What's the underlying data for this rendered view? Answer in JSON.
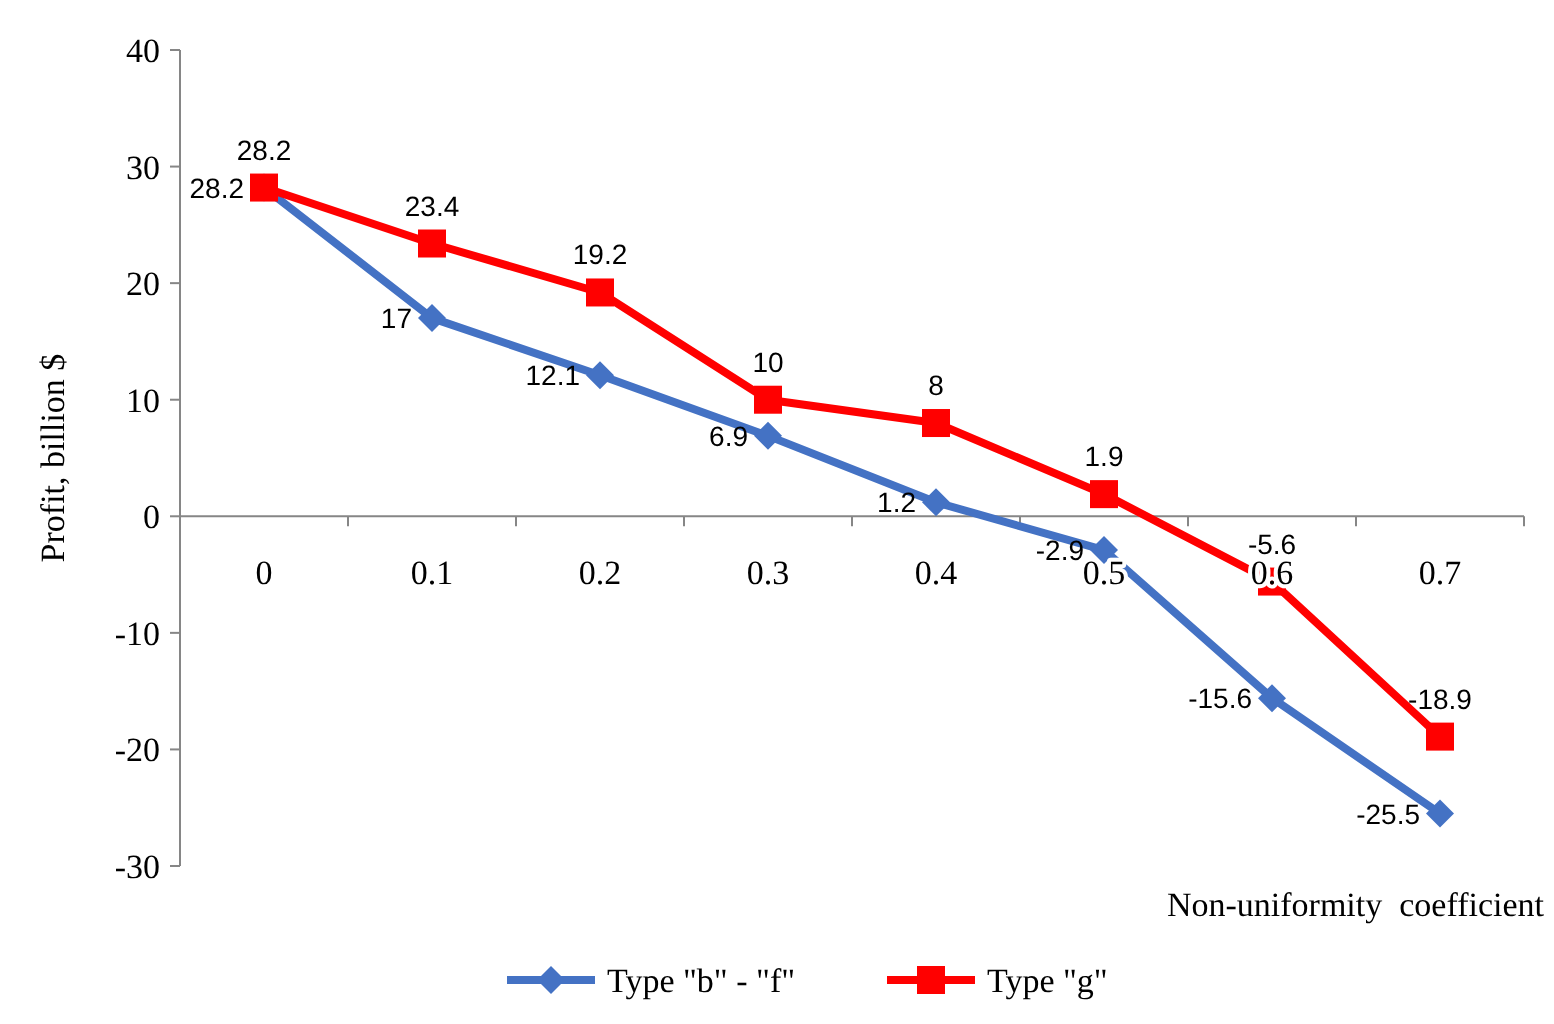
{
  "chart_data": {
    "type": "line",
    "ylabel": "Profit, billion $",
    "xlabel": "Non-uniformity  coefficient",
    "categories": [
      "0",
      "0.1",
      "0.2",
      "0.3",
      "0.4",
      "0.5",
      "0.6",
      "0.7"
    ],
    "series": [
      {
        "name": "Type \"b\" - \"f\"",
        "color": "#4472c4",
        "marker": "diamond",
        "values": [
          28.2,
          17,
          12.1,
          6.9,
          1.2,
          -2.9,
          -15.6,
          -25.5
        ]
      },
      {
        "name": "Type \"g\"",
        "color": "#ff0000",
        "marker": "square",
        "values": [
          28.2,
          23.4,
          19.2,
          10,
          8,
          1.9,
          -5.6,
          -18.9
        ]
      }
    ],
    "ylim": [
      -30,
      40
    ],
    "yticks": [
      -30,
      -20,
      -10,
      0,
      10,
      20,
      30,
      40
    ],
    "grid": false,
    "legend": "bottom",
    "data_labels": true
  }
}
